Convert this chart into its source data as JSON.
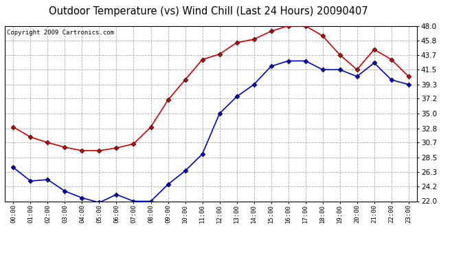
{
  "title": "Outdoor Temperature (vs) Wind Chill (Last 24 Hours) 20090407",
  "copyright": "Copyright 2009 Cartronics.com",
  "x_labels": [
    "00:00",
    "01:00",
    "02:00",
    "03:00",
    "04:00",
    "05:00",
    "06:00",
    "07:00",
    "08:00",
    "09:00",
    "10:00",
    "11:00",
    "12:00",
    "13:00",
    "14:00",
    "15:00",
    "16:00",
    "17:00",
    "18:00",
    "19:00",
    "20:00",
    "21:00",
    "22:00",
    "23:00"
  ],
  "outdoor_temp": [
    33.0,
    31.5,
    30.7,
    30.0,
    29.5,
    29.5,
    29.9,
    30.5,
    33.0,
    37.0,
    40.0,
    43.0,
    43.8,
    45.5,
    46.0,
    47.2,
    48.0,
    48.0,
    46.5,
    43.7,
    41.5,
    44.5,
    43.0,
    40.5
  ],
  "wind_chill": [
    27.0,
    25.0,
    25.2,
    23.5,
    22.5,
    21.8,
    23.0,
    22.0,
    22.0,
    24.5,
    26.5,
    29.0,
    35.0,
    37.5,
    39.3,
    42.0,
    42.8,
    42.8,
    41.5,
    41.5,
    40.5,
    42.5,
    40.0,
    39.3
  ],
  "temp_color": "#cc0000",
  "chill_color": "#0000cc",
  "bg_color": "#ffffff",
  "grid_color": "#aaaaaa",
  "ylim_min": 22.0,
  "ylim_max": 48.0,
  "y_ticks": [
    22.0,
    24.2,
    26.3,
    28.5,
    30.7,
    32.8,
    35.0,
    37.2,
    39.3,
    41.5,
    43.7,
    45.8,
    48.0
  ],
  "title_fontsize": 10.5,
  "copyright_fontsize": 6.5,
  "marker": "D",
  "marker_size": 3.5,
  "line_width": 1.2
}
